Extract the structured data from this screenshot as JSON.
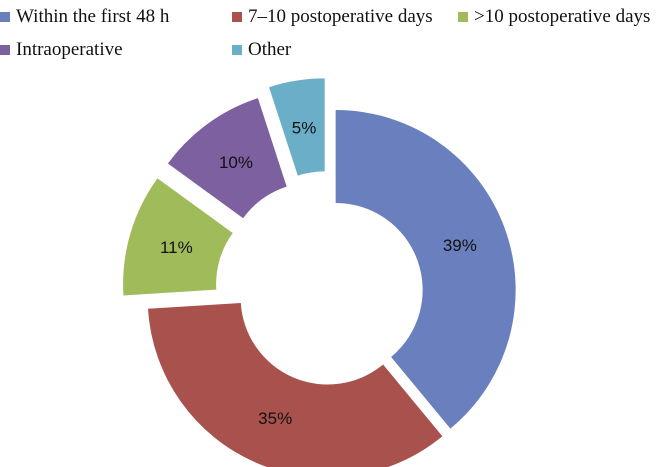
{
  "chart_data": {
    "type": "pie",
    "subtype": "donut-exploded",
    "legend_position": "top",
    "categories": [
      "Within the first 48 h",
      "7–10 postoperative days",
      ">10 postoperative days",
      "Intraoperative",
      "Other"
    ],
    "values": [
      39,
      35,
      11,
      10,
      5
    ],
    "labels": [
      "39%",
      "35%",
      "11%",
      "10%",
      "5%"
    ],
    "colors": [
      "#6a7fbd",
      "#a9514d",
      "#9fbb5a",
      "#7d60a0",
      "#6aaec8"
    ]
  }
}
